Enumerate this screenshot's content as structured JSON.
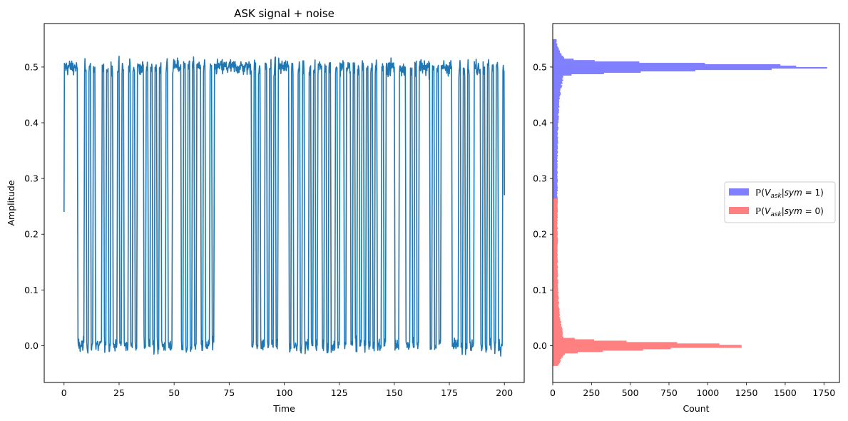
{
  "chart_data": [
    {
      "type": "line",
      "title": "ASK signal + noise",
      "xlabel": "Time",
      "ylabel": "Amplitude",
      "xlim": [
        -9,
        209
      ],
      "ylim": [
        -0.066,
        0.578
      ],
      "xticks": [
        0,
        25,
        50,
        75,
        100,
        125,
        150,
        175,
        200
      ],
      "yticks": [
        0.0,
        0.1,
        0.2,
        0.3,
        0.4,
        0.5
      ],
      "ytick_labels": [
        "0.0",
        "0.1",
        "0.2",
        "0.3",
        "0.4",
        "0.5"
      ],
      "grid": false,
      "series": [
        {
          "color": "#1f77b4",
          "x_start": 0,
          "x_end": 200,
          "bits": [
            1,
            1,
            1,
            1,
            1,
            1,
            0,
            0,
            0,
            1,
            0,
            1,
            0,
            1,
            0,
            0,
            0,
            1,
            0,
            1,
            0,
            1,
            0,
            0,
            1,
            0,
            1,
            0,
            0,
            1,
            0,
            1,
            0,
            1,
            1,
            1,
            0,
            1,
            0,
            1,
            0,
            1,
            0,
            1,
            0,
            0,
            1,
            0,
            0,
            1,
            1,
            1,
            1,
            0,
            1,
            0,
            1,
            0,
            1,
            0,
            1,
            1,
            0,
            1,
            0,
            0,
            1,
            0,
            1,
            1,
            1,
            1,
            1,
            1,
            1,
            1,
            1,
            1,
            1,
            1,
            1,
            1,
            1,
            1,
            1,
            0,
            1,
            0,
            1,
            0,
            0,
            1,
            0,
            1,
            0,
            1,
            0,
            1,
            1,
            1,
            1,
            1,
            0,
            1,
            0,
            0,
            1,
            0,
            1,
            0,
            0,
            1,
            0,
            1,
            0,
            1,
            1,
            0,
            1,
            0,
            1,
            0,
            0,
            1,
            0,
            1,
            1,
            0,
            1,
            1,
            0,
            1,
            0,
            1,
            0,
            1,
            0,
            1,
            0,
            1,
            0,
            1,
            0,
            0,
            1,
            0,
            1,
            1,
            1,
            1,
            0,
            0,
            1,
            1,
            1,
            0,
            0,
            1,
            0,
            1,
            0,
            1,
            1,
            1,
            1,
            1,
            0,
            1,
            0,
            1,
            0,
            1,
            1,
            1,
            1,
            1,
            0,
            0,
            0,
            1,
            0,
            1,
            0,
            1,
            0,
            0,
            1,
            1,
            1,
            0,
            1,
            0,
            1,
            0,
            1,
            0,
            1,
            0,
            0,
            1,
            1
          ],
          "start_value": 0.24,
          "end_value": 0.27,
          "high_level": 0.5,
          "low_level": 0.0,
          "noise_amplitude": 0.022
        }
      ]
    },
    {
      "type": "histogram-horizontal",
      "xlabel": "Count",
      "ylabel": "",
      "xlim": [
        0,
        1850
      ],
      "ylim": [
        -0.066,
        0.578
      ],
      "xticks": [
        0,
        250,
        500,
        750,
        1000,
        1250,
        1500,
        1750
      ],
      "yticks": [
        0.0,
        0.1,
        0.2,
        0.3,
        0.4,
        0.5
      ],
      "ytick_labels": [
        "0.0",
        "0.1",
        "0.2",
        "0.3",
        "0.4",
        "0.5"
      ],
      "grid": false,
      "legend_position": "right",
      "series": [
        {
          "name": "P(V_ask | sym = 1)",
          "color": "#8080ff",
          "center": 0.5,
          "range": [
            0.245,
            0.548
          ],
          "peak": 1780
        },
        {
          "name": "P(V_ask | sym = 0)",
          "color": "#ff8080",
          "center": 0.0,
          "range": [
            -0.036,
            0.262
          ],
          "peak": 1250
        }
      ]
    }
  ]
}
